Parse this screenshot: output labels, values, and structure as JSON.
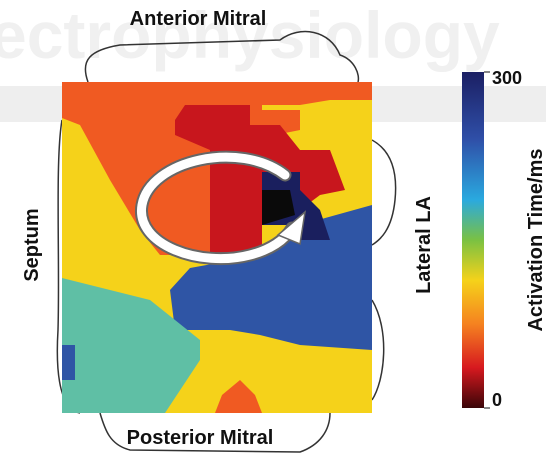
{
  "watermark": "ectrophysiology",
  "labels": {
    "top": "Anterior Mitral",
    "bottom": "Posterior Mitral",
    "left": "Septum",
    "right": "Lateral LA"
  },
  "colorbar": {
    "title": "Activation Time/ms",
    "max": 300,
    "min": 0
  }
}
